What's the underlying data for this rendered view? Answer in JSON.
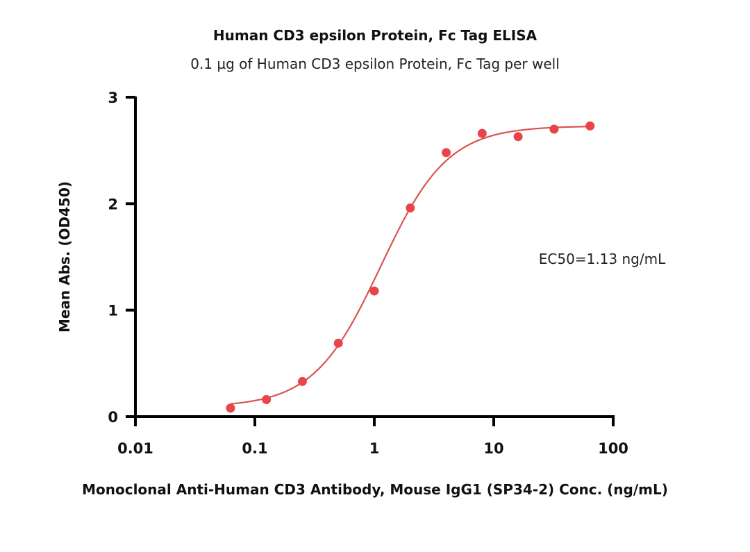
{
  "chart_data": {
    "type": "scatter",
    "title": "Human CD3 epsilon Protein, Fc Tag ELISA",
    "subtitle": "0.1 µg of Human CD3 epsilon Protein, Fc Tag per well",
    "xlabel": "Monoclonal Anti-Human CD3 Antibody, Mouse IgG1 (SP34-2) Conc. (ng/mL)",
    "ylabel": "Mean Abs. (OD450)",
    "xscale": "log",
    "xlim": [
      0.01,
      100
    ],
    "ylim": [
      0,
      3
    ],
    "x_ticks": [
      0.01,
      0.1,
      1,
      10,
      100
    ],
    "x_tick_labels": [
      "0.01",
      "0.1",
      "1",
      "10",
      "100"
    ],
    "y_ticks": [
      0,
      1,
      2,
      3
    ],
    "y_tick_labels": [
      "0",
      "1",
      "2",
      "3"
    ],
    "grid": false,
    "series": [
      {
        "name": "Mean Abs.",
        "color": "#e8454a",
        "x": [
          0.0625,
          0.125,
          0.25,
          0.5,
          1,
          2,
          4,
          8,
          16,
          32,
          64
        ],
        "y": [
          0.08,
          0.16,
          0.33,
          0.69,
          1.18,
          1.96,
          2.48,
          2.66,
          2.63,
          2.7,
          2.73
        ]
      }
    ],
    "fit": {
      "type": "4PL",
      "bottom": 0.09,
      "top": 2.73,
      "ec50": 1.13,
      "hill": 1.55,
      "color": "#d9534f"
    },
    "annotation": "EC50=1.13 ng/mL"
  }
}
